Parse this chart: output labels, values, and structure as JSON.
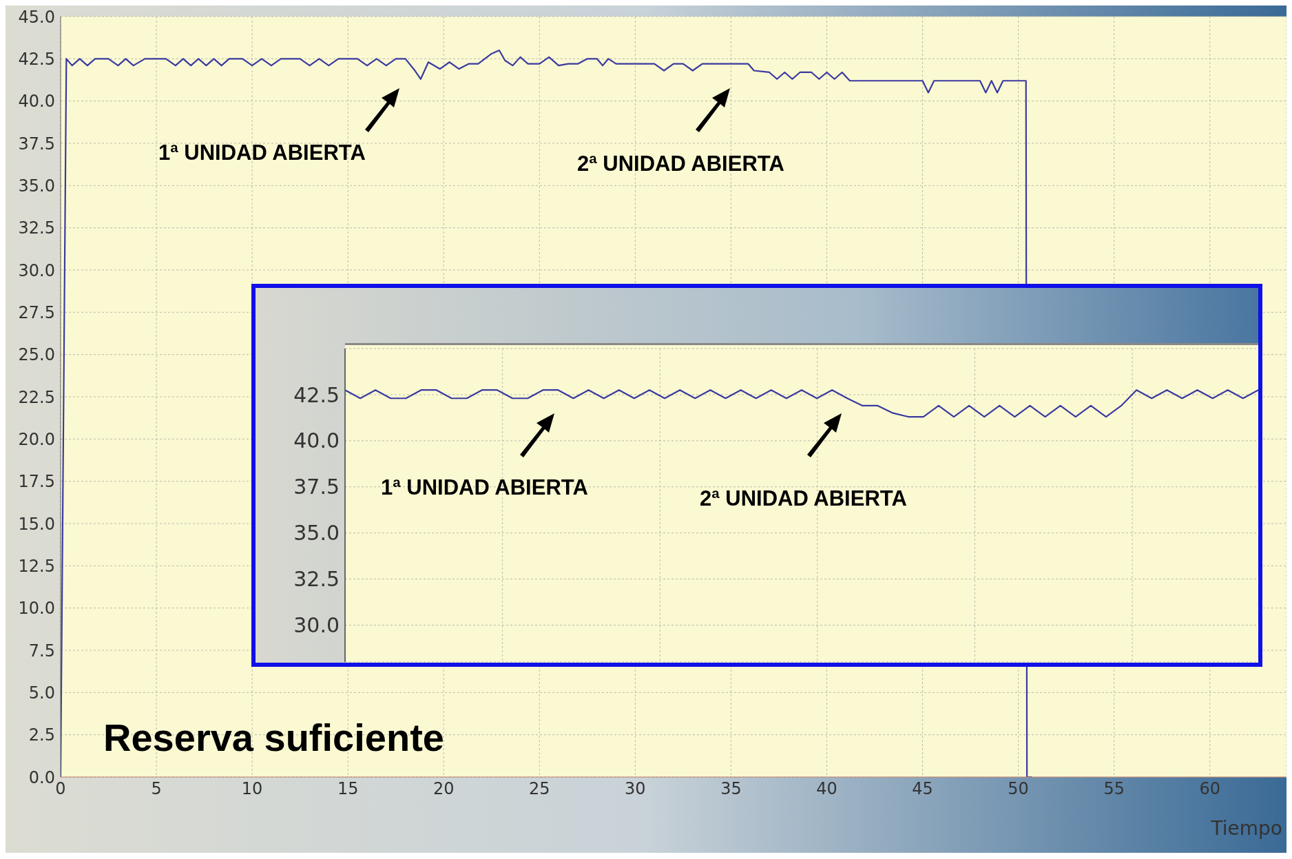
{
  "chart_data": [
    {
      "type": "line",
      "xlabel": "Tiempo",
      "annotations": [
        "1ª UNIDAD ABIERTA",
        "2ª UNIDAD ABIERTA",
        "Reserva suficiente"
      ],
      "xlim": [
        0,
        64
      ],
      "xticks": [
        0,
        5,
        10,
        15,
        20,
        25,
        30,
        35,
        40,
        45,
        50,
        55,
        60
      ],
      "ylim": [
        0,
        45
      ],
      "yticks": [
        {
          "value": 0,
          "label": "0.0"
        },
        {
          "value": 2.5,
          "label": "2.5"
        },
        {
          "value": 5,
          "label": "5.0"
        },
        {
          "value": 7.5,
          "label": "7.5"
        },
        {
          "value": 10,
          "label": "10.0"
        },
        {
          "value": 12.5,
          "label": "12.5"
        },
        {
          "value": 15,
          "label": "15.0"
        },
        {
          "value": 17.5,
          "label": "17.5"
        },
        {
          "value": 20,
          "label": "20.0"
        },
        {
          "value": 22.5,
          "label": "22.5"
        },
        {
          "value": 25,
          "label": "25.0"
        },
        {
          "value": 27.5,
          "label": "27.5"
        },
        {
          "value": 30,
          "label": "30.0"
        },
        {
          "value": 32.5,
          "label": "32.5"
        },
        {
          "value": 35,
          "label": "35.0"
        },
        {
          "value": 37.5,
          "label": "37.5"
        },
        {
          "value": 40,
          "label": "40.0"
        },
        {
          "value": 42.5,
          "label": "42.5"
        },
        {
          "value": 45,
          "label": "45.0"
        }
      ],
      "grid": true,
      "marker": "none",
      "line_style": "solid",
      "series": [
        {
          "color": "#3a3aa0",
          "x": [
            0,
            0.3,
            0.6,
            1,
            1.4,
            1.8,
            2.5,
            3,
            3.4,
            3.8,
            4.4,
            5.5,
            6,
            6.4,
            6.8,
            7.2,
            7.6,
            8,
            8.4,
            8.8,
            9.5,
            10,
            10.5,
            11,
            11.5,
            12.5,
            13,
            13.5,
            14,
            14.5,
            15.5,
            16,
            16.5,
            17,
            17.5,
            18,
            18.5,
            18.8,
            19.2,
            19.8,
            20.3,
            20.8,
            21.3,
            21.8,
            22.5,
            22.9,
            23.2,
            23.6,
            24,
            24.4,
            25,
            25.5,
            26,
            26.5,
            27,
            27.5,
            28,
            28.3,
            28.6,
            29,
            30.5,
            31,
            31.5,
            32,
            32.5,
            33,
            33.5,
            35.9,
            36.2,
            37,
            37.4,
            37.8,
            38.2,
            38.6,
            39.2,
            39.6,
            40,
            40.4,
            40.8,
            41.2,
            45,
            45.3,
            45.6,
            48,
            48.3,
            48.6,
            48.9,
            49.2,
            50.4,
            50.45,
            50.7
          ],
          "values": [
            0,
            42.5,
            42.1,
            42.5,
            42.1,
            42.5,
            42.5,
            42.1,
            42.5,
            42.1,
            42.5,
            42.5,
            42.1,
            42.5,
            42.1,
            42.5,
            42.1,
            42.5,
            42.1,
            42.5,
            42.5,
            42.1,
            42.5,
            42.1,
            42.5,
            42.5,
            42.1,
            42.5,
            42.1,
            42.5,
            42.5,
            42.1,
            42.5,
            42.1,
            42.5,
            42.5,
            41.8,
            41.3,
            42.3,
            41.9,
            42.3,
            41.9,
            42.2,
            42.2,
            42.8,
            43,
            42.4,
            42.1,
            42.6,
            42.2,
            42.2,
            42.6,
            42.1,
            42.2,
            42.2,
            42.5,
            42.5,
            42.1,
            42.5,
            42.2,
            42.2,
            42.2,
            41.8,
            42.2,
            42.2,
            41.8,
            42.2,
            42.2,
            41.8,
            41.7,
            41.3,
            41.7,
            41.3,
            41.7,
            41.7,
            41.3,
            41.7,
            41.3,
            41.7,
            41.2,
            41.2,
            40.5,
            41.2,
            41.2,
            40.5,
            41.2,
            40.5,
            41.2,
            41.2,
            0,
            0
          ]
        }
      ]
    },
    {
      "type": "line",
      "annotations": [
        "1ª UNIDAD ABIERTA",
        "2ª UNIDAD ABIERTA"
      ],
      "categories": [
        null,
        null,
        null,
        null,
        null,
        null,
        null,
        null,
        null,
        null,
        null,
        null,
        null,
        null,
        null,
        null,
        null,
        null,
        null,
        null,
        null,
        null,
        null,
        null,
        null,
        null,
        null,
        null,
        null,
        null,
        null,
        null,
        null,
        null,
        null,
        null,
        null,
        null,
        null,
        null,
        null,
        null,
        null,
        null,
        null,
        null,
        null,
        null,
        null,
        null,
        null,
        null,
        null,
        null,
        null,
        null,
        null,
        null,
        null,
        null,
        null
      ],
      "ylim": [
        28,
        45
      ],
      "yticks": [
        {
          "value": 30,
          "label": "30.0"
        },
        {
          "value": 32.5,
          "label": "32.5"
        },
        {
          "value": 35,
          "label": "35.0"
        },
        {
          "value": 37.5,
          "label": "37.5"
        },
        {
          "value": 40,
          "label": "40.0"
        },
        {
          "value": 42.5,
          "label": "42.5"
        }
      ],
      "tick_labels": "y",
      "grid": true,
      "marker": "none",
      "line_style": "solid",
      "series": [
        {
          "color": "#3a3aa0",
          "values": [
            42.75,
            42.3,
            42.75,
            42.3,
            42.3,
            42.75,
            42.75,
            42.3,
            42.3,
            42.75,
            42.75,
            42.3,
            42.3,
            42.75,
            42.75,
            42.3,
            42.75,
            42.3,
            42.75,
            42.3,
            42.75,
            42.3,
            42.75,
            42.3,
            42.75,
            42.3,
            42.75,
            42.3,
            42.75,
            42.3,
            42.75,
            42.3,
            42.75,
            42.3,
            41.9,
            41.9,
            41.5,
            41.3,
            41.3,
            41.9,
            41.3,
            41.9,
            41.3,
            41.9,
            41.3,
            41.9,
            41.3,
            41.9,
            41.3,
            41.9,
            41.3,
            41.9,
            42.75,
            42.3,
            42.75,
            42.3,
            42.75,
            42.3,
            42.75,
            42.3,
            42.75
          ]
        }
      ]
    }
  ]
}
